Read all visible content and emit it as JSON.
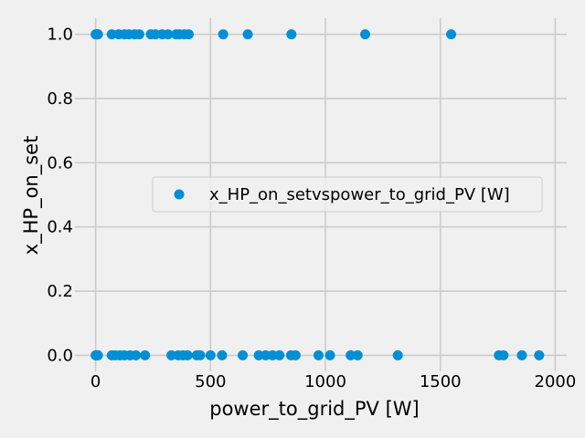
{
  "chart_data": {
    "type": "scatter",
    "xlabel": "power_to_grid_PV [W]",
    "ylabel": "x_HP_on_set",
    "xlim": [
      -90,
      2050
    ],
    "ylim": [
      -0.05,
      1.05
    ],
    "xticks": [
      0,
      500,
      1000,
      1500,
      2000
    ],
    "yticks": [
      0.0,
      0.2,
      0.4,
      0.6,
      0.8,
      1.0
    ],
    "xtick_labels": [
      "0",
      "500",
      "1000",
      "1500",
      "2000"
    ],
    "ytick_labels": [
      "0.0",
      "0.2",
      "0.4",
      "0.6",
      "0.8",
      "1.0"
    ],
    "grid": true,
    "legend_position": "center-right",
    "series": [
      {
        "name": "x_HP_on_setvspower_to_grid_PV [W]",
        "color": "#008fd5",
        "marker": "circle",
        "points": [
          [
            0,
            1
          ],
          [
            2,
            1
          ],
          [
            4,
            1
          ],
          [
            6,
            1
          ],
          [
            8,
            1
          ],
          [
            10,
            1
          ],
          [
            70,
            1
          ],
          [
            100,
            1
          ],
          [
            125,
            1
          ],
          [
            145,
            1
          ],
          [
            170,
            1
          ],
          [
            190,
            1
          ],
          [
            240,
            1
          ],
          [
            260,
            1
          ],
          [
            290,
            1
          ],
          [
            315,
            1
          ],
          [
            350,
            1
          ],
          [
            365,
            1
          ],
          [
            385,
            1
          ],
          [
            405,
            1
          ],
          [
            555,
            1
          ],
          [
            662,
            1
          ],
          [
            852,
            1
          ],
          [
            1173,
            1
          ],
          [
            1547,
            1
          ],
          [
            0,
            0
          ],
          [
            2,
            0
          ],
          [
            4,
            0
          ],
          [
            6,
            0
          ],
          [
            8,
            0
          ],
          [
            10,
            0
          ],
          [
            70,
            0
          ],
          [
            85,
            0
          ],
          [
            105,
            0
          ],
          [
            125,
            0
          ],
          [
            150,
            0
          ],
          [
            175,
            0
          ],
          [
            215,
            0
          ],
          [
            330,
            0
          ],
          [
            360,
            0
          ],
          [
            380,
            0
          ],
          [
            400,
            0
          ],
          [
            440,
            0
          ],
          [
            455,
            0
          ],
          [
            500,
            0
          ],
          [
            550,
            0
          ],
          [
            640,
            0
          ],
          [
            710,
            0
          ],
          [
            740,
            0
          ],
          [
            770,
            0
          ],
          [
            800,
            0
          ],
          [
            850,
            0
          ],
          [
            870,
            0
          ],
          [
            970,
            0
          ],
          [
            1020,
            0
          ],
          [
            1110,
            0
          ],
          [
            1140,
            0
          ],
          [
            1315,
            0
          ],
          [
            1755,
            0
          ],
          [
            1775,
            0
          ],
          [
            1855,
            0
          ],
          [
            1930,
            0
          ]
        ]
      }
    ]
  }
}
